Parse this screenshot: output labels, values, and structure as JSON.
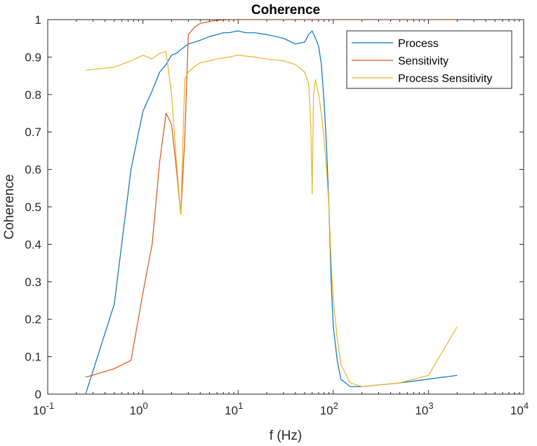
{
  "chart_data": {
    "type": "line",
    "title": "Coherence",
    "xlabel": "f (Hz)",
    "ylabel": "Coherence",
    "xscale": "log",
    "xlim": [
      0.1,
      10000
    ],
    "ylim": [
      0,
      1
    ],
    "xticks": [
      {
        "value": 0.1,
        "base": "10",
        "exp": "-1"
      },
      {
        "value": 1,
        "base": "10",
        "exp": "0"
      },
      {
        "value": 10,
        "base": "10",
        "exp": "1"
      },
      {
        "value": 100,
        "base": "10",
        "exp": "2"
      },
      {
        "value": 1000,
        "base": "10",
        "exp": "3"
      },
      {
        "value": 10000,
        "base": "10",
        "exp": "4"
      }
    ],
    "yticks": [
      {
        "value": 0,
        "label": "0"
      },
      {
        "value": 0.1,
        "label": "0.1"
      },
      {
        "value": 0.2,
        "label": "0.2"
      },
      {
        "value": 0.3,
        "label": "0.3"
      },
      {
        "value": 0.4,
        "label": "0.4"
      },
      {
        "value": 0.5,
        "label": "0.5"
      },
      {
        "value": 0.6,
        "label": "0.6"
      },
      {
        "value": 0.7,
        "label": "0.7"
      },
      {
        "value": 0.8,
        "label": "0.8"
      },
      {
        "value": 0.9,
        "label": "0.9"
      },
      {
        "value": 1,
        "label": "1"
      }
    ],
    "grid": false,
    "legend_position": "top-right",
    "series": [
      {
        "name": "Process",
        "color": "#0072BD",
        "x": [
          0.25,
          0.5,
          0.75,
          1,
          1.25,
          1.5,
          1.75,
          2,
          2.25,
          2.5,
          3,
          3.5,
          4,
          5,
          6,
          7,
          8,
          10,
          12,
          15,
          20,
          25,
          30,
          40,
          50,
          55,
          60,
          65,
          70,
          75,
          80,
          85,
          90,
          95,
          100,
          110,
          120,
          150,
          200,
          500,
          1000,
          2000
        ],
        "y": [
          0.0,
          0.24,
          0.6,
          0.755,
          0.81,
          0.86,
          0.88,
          0.905,
          0.91,
          0.92,
          0.935,
          0.94,
          0.945,
          0.955,
          0.96,
          0.965,
          0.965,
          0.97,
          0.965,
          0.965,
          0.96,
          0.955,
          0.95,
          0.935,
          0.94,
          0.96,
          0.97,
          0.95,
          0.93,
          0.88,
          0.78,
          0.66,
          0.5,
          0.3,
          0.18,
          0.09,
          0.04,
          0.02,
          0.02,
          0.03,
          0.04,
          0.05
        ]
      },
      {
        "name": "Sensitivity",
        "color": "#D95319",
        "x": [
          0.25,
          0.5,
          0.75,
          1,
          1.25,
          1.5,
          1.75,
          2,
          2.25,
          2.5,
          2.75,
          3,
          3.5,
          4,
          5,
          6,
          8,
          10,
          20,
          50,
          60,
          100,
          1000,
          2000
        ],
        "y": [
          0.045,
          0.068,
          0.09,
          0.27,
          0.4,
          0.62,
          0.75,
          0.72,
          0.6,
          0.48,
          0.68,
          0.96,
          0.98,
          0.99,
          0.995,
          0.998,
          1.0,
          1.0,
          1.0,
          1.0,
          1.0,
          1.0,
          1.0,
          1.0
        ]
      },
      {
        "name": "Process Sensitivity",
        "color": "#EDB120",
        "x": [
          0.25,
          0.5,
          0.75,
          1,
          1.25,
          1.5,
          1.75,
          2,
          2.25,
          2.5,
          2.75,
          3,
          3.5,
          4,
          5,
          6,
          8,
          10,
          15,
          20,
          30,
          40,
          50,
          55,
          58,
          60,
          62,
          65,
          70,
          75,
          80,
          85,
          90,
          95,
          100,
          110,
          120,
          150,
          200,
          500,
          1000,
          2000
        ],
        "y": [
          0.865,
          0.873,
          0.89,
          0.905,
          0.895,
          0.91,
          0.915,
          0.8,
          0.62,
          0.48,
          0.84,
          0.86,
          0.875,
          0.885,
          0.89,
          0.895,
          0.9,
          0.905,
          0.9,
          0.895,
          0.89,
          0.88,
          0.86,
          0.83,
          0.72,
          0.535,
          0.8,
          0.84,
          0.8,
          0.75,
          0.68,
          0.6,
          0.5,
          0.35,
          0.25,
          0.15,
          0.08,
          0.03,
          0.02,
          0.03,
          0.05,
          0.18
        ]
      }
    ]
  }
}
